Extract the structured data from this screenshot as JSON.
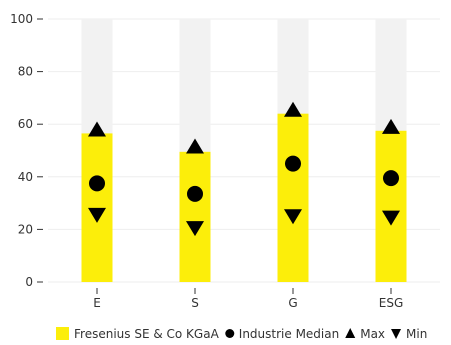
{
  "chart_data": {
    "type": "bar",
    "categories": [
      "E",
      "S",
      "G",
      "ESG"
    ],
    "ylim": [
      0,
      100
    ],
    "yticks": [
      0,
      20,
      40,
      60,
      80,
      100
    ],
    "grid": true,
    "legend_position": "bottom",
    "series": [
      {
        "name": "Fresenius SE & Co KGaA",
        "kind": "bar",
        "values": [
          56.5,
          49.5,
          64,
          57.5
        ],
        "color": "#FCEE0A"
      },
      {
        "name": "Industrie Median",
        "kind": "marker-circle",
        "values": [
          37.5,
          33.5,
          45,
          39.5
        ],
        "color": "#000000"
      },
      {
        "name": "Max",
        "kind": "marker-triangle-up",
        "values": [
          58,
          51.5,
          65.5,
          59
        ],
        "color": "#000000"
      },
      {
        "name": "Min",
        "kind": "marker-triangle-down",
        "values": [
          25.5,
          20.5,
          25,
          24.5
        ],
        "color": "#000000"
      }
    ],
    "background_band_color": "#F2F2F2"
  }
}
